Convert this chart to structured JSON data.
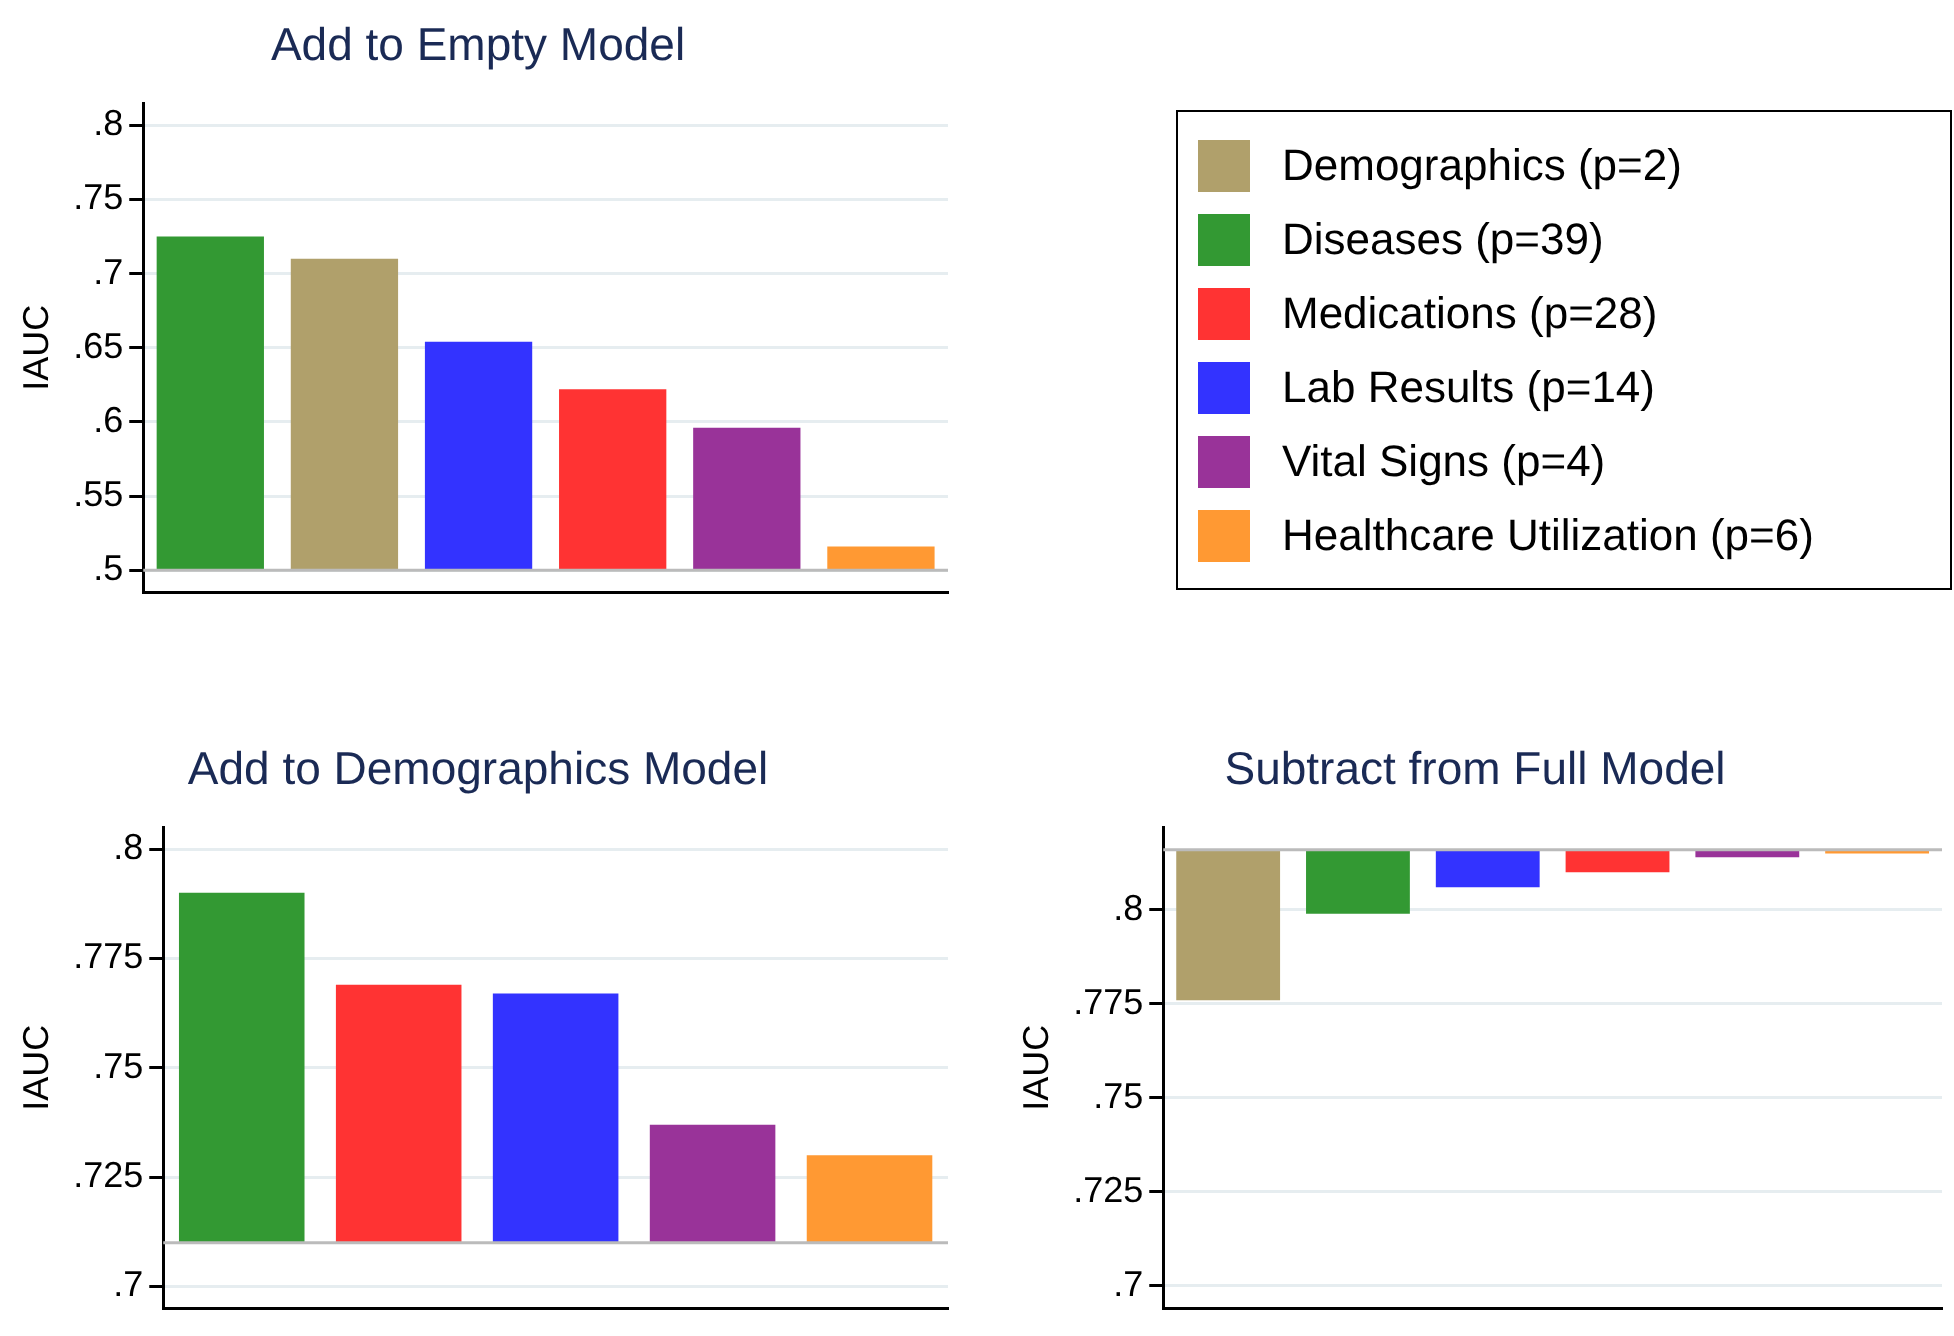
{
  "chart_data": [
    {
      "type": "bar",
      "title": "Add to Empty Model",
      "ylabel": "IAUC",
      "categories": [
        null,
        null,
        null,
        null,
        null,
        null
      ],
      "series": [
        {
          "name": "Demographics (p=2)",
          "color": "#b0a06b",
          "values": [
            null,
            0.21,
            null,
            null,
            null,
            null
          ],
          "base": [
            null,
            0.5,
            null,
            null,
            null,
            null
          ]
        },
        {
          "name": "Diseases (p=39)",
          "color": "#339933",
          "values": [
            0.225,
            null,
            null,
            null,
            null,
            null
          ],
          "base": [
            0.5,
            null,
            null,
            null,
            null,
            null
          ]
        },
        {
          "name": "Medications (p=28)",
          "color": "#ff3333",
          "values": [
            null,
            null,
            null,
            0.122,
            null,
            null
          ],
          "base": [
            null,
            null,
            null,
            0.5,
            null,
            null
          ]
        },
        {
          "name": "Lab Results (p=14)",
          "color": "#3333ff",
          "values": [
            null,
            null,
            0.154,
            null,
            null,
            null
          ],
          "base": [
            null,
            null,
            0.5,
            null,
            null,
            null
          ]
        },
        {
          "name": "Vital Signs (p=4)",
          "color": "#993399",
          "values": [
            null,
            null,
            null,
            null,
            0.096,
            null
          ],
          "base": [
            null,
            null,
            null,
            null,
            0.5,
            null
          ]
        },
        {
          "name": "Healthcare Utilization (p=6)",
          "color": "#ff9933",
          "values": [
            null,
            null,
            null,
            null,
            null,
            0.016
          ],
          "base": [
            null,
            null,
            null,
            null,
            null,
            0.5
          ]
        }
      ],
      "ylim": [
        0.485,
        0.815
      ],
      "yticks": [
        {
          "value": 0.5,
          "label": ".5"
        },
        {
          "value": 0.55,
          "label": ".55"
        },
        {
          "value": 0.6,
          "label": ".6"
        },
        {
          "value": 0.65,
          "label": ".65"
        },
        {
          "value": 0.7,
          "label": ".7"
        },
        {
          "value": 0.75,
          "label": ".75"
        },
        {
          "value": 0.8,
          "label": ".8"
        }
      ],
      "ref_lines": [
        {
          "axis": "y",
          "value": 0.5,
          "color": "#bbbbbb"
        }
      ],
      "grid": "y",
      "tick_labels": "y",
      "legend": "right"
    },
    {
      "type": "bar",
      "title": "Add to Demographics Model",
      "ylabel": "IAUC",
      "categories": [
        null,
        null,
        null,
        null,
        null
      ],
      "series": [
        {
          "color": "#339933",
          "values": [
            0.08,
            null,
            null,
            null,
            null
          ],
          "base": [
            0.71,
            null,
            null,
            null,
            null
          ]
        },
        {
          "color": "#ff3333",
          "values": [
            null,
            0.059,
            null,
            null,
            null
          ],
          "base": [
            null,
            0.71,
            null,
            null,
            null
          ]
        },
        {
          "color": "#3333ff",
          "values": [
            null,
            null,
            0.057,
            null,
            null
          ],
          "base": [
            null,
            null,
            0.71,
            null,
            null
          ]
        },
        {
          "color": "#993399",
          "values": [
            null,
            null,
            null,
            0.027,
            null
          ],
          "base": [
            null,
            null,
            null,
            0.71,
            null
          ]
        },
        {
          "color": "#ff9933",
          "values": [
            null,
            null,
            null,
            null,
            0.02
          ],
          "base": [
            null,
            null,
            null,
            null,
            0.71
          ]
        }
      ],
      "ylim": [
        0.695,
        0.805
      ],
      "yticks": [
        {
          "value": 0.7,
          "label": ".7"
        },
        {
          "value": 0.725,
          "label": ".725"
        },
        {
          "value": 0.75,
          "label": ".75"
        },
        {
          "value": 0.775,
          "label": ".775"
        },
        {
          "value": 0.8,
          "label": ".8"
        }
      ],
      "ref_lines": [
        {
          "axis": "y",
          "value": 0.71,
          "color": "#bbbbbb"
        }
      ],
      "grid": "y",
      "tick_labels": "y"
    },
    {
      "type": "bar",
      "title": "Subtract from Full Model",
      "ylabel": "IAUC",
      "categories": [
        null,
        null,
        null,
        null,
        null,
        null
      ],
      "series": [
        {
          "color": "#b0a06b",
          "values": [
            -0.04,
            null,
            null,
            null,
            null,
            null
          ],
          "base": [
            0.816,
            null,
            null,
            null,
            null,
            null
          ]
        },
        {
          "color": "#339933",
          "values": [
            null,
            -0.017,
            null,
            null,
            null,
            null
          ],
          "base": [
            null,
            0.816,
            null,
            null,
            null,
            null
          ]
        },
        {
          "color": "#3333ff",
          "values": [
            null,
            null,
            -0.01,
            null,
            null,
            null
          ],
          "base": [
            null,
            null,
            0.816,
            null,
            null,
            null
          ]
        },
        {
          "color": "#ff3333",
          "values": [
            null,
            null,
            null,
            -0.006,
            null,
            null
          ],
          "base": [
            null,
            null,
            null,
            0.816,
            null,
            null
          ]
        },
        {
          "color": "#993399",
          "values": [
            null,
            null,
            null,
            null,
            -0.002,
            null
          ],
          "base": [
            null,
            null,
            null,
            null,
            0.816,
            null
          ]
        },
        {
          "color": "#ff9933",
          "values": [
            null,
            null,
            null,
            null,
            null,
            -0.001
          ],
          "base": [
            null,
            null,
            null,
            null,
            null,
            0.816
          ]
        }
      ],
      "ylim": [
        0.694,
        0.822
      ],
      "yticks": [
        {
          "value": 0.7,
          "label": ".7"
        },
        {
          "value": 0.725,
          "label": ".725"
        },
        {
          "value": 0.75,
          "label": ".75"
        },
        {
          "value": 0.775,
          "label": ".775"
        },
        {
          "value": 0.8,
          "label": ".8"
        }
      ],
      "ref_lines": [
        {
          "axis": "y",
          "value": 0.816,
          "color": "#bbbbbb"
        }
      ],
      "grid": "y",
      "tick_labels": "y"
    }
  ]
}
